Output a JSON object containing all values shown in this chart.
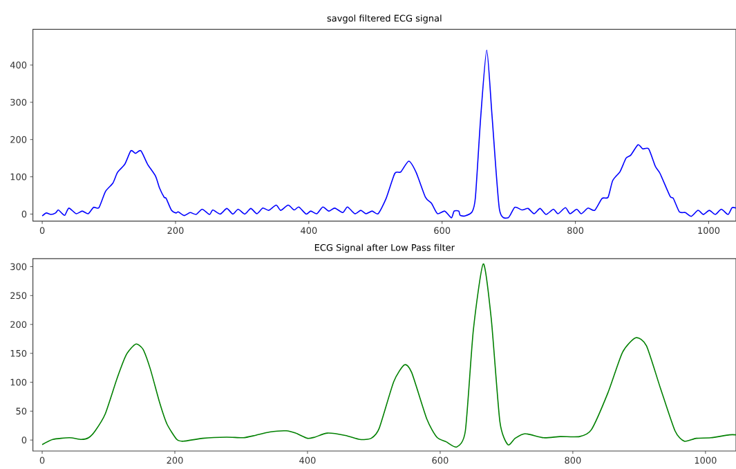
{
  "chart_data": [
    {
      "type": "line",
      "title": "savgol filtered ECG signal",
      "color": "#0000ff",
      "xlim": [
        -14,
        1041
      ],
      "ylim": [
        -19,
        496
      ],
      "xticks": [
        0,
        200,
        400,
        600,
        800,
        1000
      ],
      "yticks": [
        0,
        100,
        200,
        300,
        400
      ],
      "x": [
        0,
        6,
        13,
        20,
        24,
        29,
        34,
        40,
        51,
        60,
        69,
        77,
        85,
        95,
        106,
        113,
        124,
        133,
        140,
        148,
        158,
        170,
        176,
        183,
        186,
        194,
        201,
        204,
        213,
        222,
        231,
        240,
        251,
        256,
        267,
        277,
        286,
        294,
        304,
        313,
        322,
        331,
        340,
        351,
        358,
        369,
        378,
        385,
        396,
        403,
        412,
        421,
        430,
        439,
        451,
        458,
        469,
        478,
        486,
        495,
        504,
        516,
        529,
        538,
        550,
        561,
        575,
        584,
        593,
        604,
        614,
        618,
        625,
        627,
        634,
        645,
        650,
        658,
        667,
        675,
        686,
        699,
        709,
        720,
        729,
        738,
        747,
        756,
        767,
        774,
        785,
        792,
        802,
        809,
        819,
        829,
        840,
        849,
        856,
        867,
        876,
        883,
        894,
        901,
        910,
        920,
        927,
        942,
        947,
        956,
        965,
        974,
        984,
        992,
        1001,
        1010,
        1019,
        1029,
        1035,
        1041
      ],
      "values": [
        -5,
        3,
        -1,
        3,
        11,
        3,
        -3,
        16,
        1,
        8,
        1,
        18,
        17,
        61,
        83,
        112,
        134,
        170,
        163,
        170,
        134,
        102,
        70,
        45,
        42,
        10,
        3,
        6,
        -4,
        4,
        -1,
        13,
        -1,
        11,
        0,
        15,
        0,
        13,
        0,
        15,
        1,
        16,
        10,
        24,
        10,
        24,
        11,
        19,
        0,
        8,
        1,
        19,
        8,
        16,
        4,
        19,
        1,
        10,
        1,
        8,
        1,
        42,
        109,
        113,
        142,
        112,
        45,
        29,
        1,
        8,
        -10,
        8,
        8,
        -3,
        -5,
        6,
        45,
        262,
        440,
        262,
        13,
        -10,
        18,
        11,
        15,
        1,
        15,
        -1,
        13,
        1,
        17,
        1,
        13,
        1,
        16,
        10,
        42,
        45,
        90,
        114,
        150,
        158,
        186,
        175,
        175,
        128,
        109,
        48,
        42,
        6,
        4,
        -6,
        10,
        -1,
        10,
        -1,
        13,
        -1,
        17,
        16
      ]
    },
    {
      "type": "line",
      "title": "ECG Signal after Low Pass filter",
      "color": "#008000",
      "xlim": [
        -14,
        1046
      ],
      "ylim": [
        -19,
        314
      ],
      "xticks": [
        0,
        200,
        400,
        600,
        800,
        1000
      ],
      "yticks": [
        0,
        50,
        100,
        150,
        200,
        250,
        300
      ],
      "x": [
        0,
        16,
        41,
        59,
        70,
        80,
        95,
        113,
        127,
        141,
        152,
        163,
        177,
        188,
        203,
        213,
        242,
        278,
        303,
        321,
        343,
        368,
        382,
        400,
        411,
        430,
        457,
        479,
        496,
        508,
        530,
        546,
        557,
        580,
        595,
        609,
        625,
        638,
        650,
        665,
        677,
        690,
        702,
        713,
        728,
        756,
        781,
        810,
        828,
        853,
        875,
        895,
        911,
        932,
        954,
        968,
        986,
        1008,
        1036,
        1046
      ],
      "values": [
        -8,
        1,
        4,
        1,
        4,
        16,
        45,
        107,
        148,
        166,
        157,
        123,
        65,
        28,
        1,
        -2,
        3,
        5,
        4,
        8,
        14,
        16,
        12,
        3,
        5,
        12,
        8,
        1,
        3,
        20,
        101,
        130,
        117,
        36,
        5,
        -3,
        -12,
        16,
        190,
        305,
        210,
        32,
        -8,
        3,
        11,
        4,
        6,
        6,
        18,
        82,
        152,
        177,
        163,
        90,
        16,
        -2,
        3,
        4,
        9,
        9
      ]
    }
  ]
}
